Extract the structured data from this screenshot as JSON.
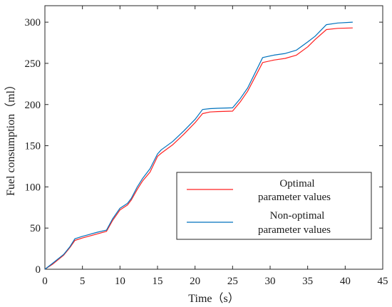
{
  "chart_data": {
    "type": "line",
    "xlabel": "Time（s）",
    "ylabel": "Fuel consumption（ml）",
    "xlim": [
      0,
      45
    ],
    "ylim": [
      0,
      320
    ],
    "xticks": [
      0,
      5,
      10,
      15,
      20,
      25,
      30,
      35,
      40,
      45
    ],
    "yticks": [
      0,
      50,
      100,
      150,
      200,
      250,
      300
    ],
    "grid": false,
    "legend_position": "lower-right",
    "series": [
      {
        "name": "Optimal parameter values",
        "legend_lines": [
          "Optimal",
          "parameter values"
        ],
        "color": "#ff2020",
        "x": [
          0,
          1,
          2.5,
          3.3,
          4,
          5,
          6,
          7,
          8.2,
          9,
          10,
          11,
          11.5,
          12.3,
          13,
          14,
          15,
          15.5,
          17,
          18.5,
          20,
          21,
          22,
          23,
          25,
          26,
          27,
          29,
          30.5,
          32,
          33.5,
          35,
          36,
          37.5,
          39,
          41
        ],
        "y": [
          0,
          6,
          17,
          26,
          35,
          38,
          40.5,
          43,
          46,
          59,
          72,
          78,
          84,
          97,
          107,
          118,
          137,
          141,
          151,
          164,
          178,
          189,
          191,
          191.5,
          192,
          203,
          216,
          251,
          254,
          256,
          260,
          270,
          279,
          291,
          292.5,
          293
        ]
      },
      {
        "name": "Non-optimal parameter values",
        "legend_lines": [
          "Non-optimal",
          "parameter values"
        ],
        "color": "#0072bd",
        "x": [
          0,
          1,
          2.5,
          3.3,
          4,
          5,
          6,
          7,
          8.2,
          9,
          10,
          11,
          11.5,
          12.3,
          13,
          14,
          15,
          15.5,
          17,
          18.5,
          20,
          21,
          22,
          23,
          25,
          26,
          27,
          29,
          30.5,
          32,
          33.5,
          35,
          36,
          37.5,
          39,
          41
        ],
        "y": [
          0,
          7,
          18,
          27,
          37,
          40,
          42.5,
          45,
          47.5,
          61,
          74,
          80,
          86,
          100,
          110,
          122,
          140,
          145,
          155,
          168,
          182,
          194,
          195,
          195.5,
          196,
          207,
          220,
          257,
          260,
          262,
          266,
          276,
          283,
          297,
          299,
          300
        ]
      }
    ]
  }
}
